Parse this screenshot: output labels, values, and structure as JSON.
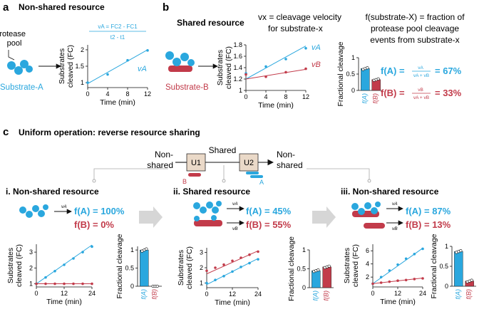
{
  "colors": {
    "a": "#2aa7de",
    "b": "#c23b4a",
    "flow_box": "#ead9c8",
    "arrow_gray": "#d6d6d6"
  },
  "panel_a": {
    "letter": "a",
    "title": "Non-shared resource",
    "protease_label": [
      "Protease",
      "pool"
    ],
    "substrate_label": "Substrate-A",
    "formula_num": "vA = FC2 - FC1",
    "formula_den": "t2 - t1",
    "curve_label": "vA"
  },
  "panel_b": {
    "letter": "b",
    "title": "Shared resource",
    "vx_def": [
      "vx = cleavage velocity",
      "for substrate-x"
    ],
    "substrate_label": "Substrate-B",
    "fraction_def": [
      "f(substrate-X) = fraction of",
      "protease pool cleavage",
      "events from substrate-x"
    ],
    "fa_text": "f(A) =",
    "fa_result": "= 67%",
    "fb_text": "f(B) =",
    "fb_result": "= 33%",
    "frac_num_a": "vA",
    "frac_num_b": "vB",
    "frac_den": "vA + vB",
    "curve_labels": [
      "vA",
      "vB"
    ]
  },
  "panel_c": {
    "letter": "c",
    "title": "Uniform operation: reverse resource sharing",
    "flow": {
      "left": [
        "Non-",
        "shared"
      ],
      "mid": "Shared",
      "right": [
        "Non-",
        "shared"
      ],
      "u1": "U1",
      "u2": "U2",
      "b": "B",
      "a": "A"
    },
    "sub": [
      {
        "title": "i. Non-shared resource",
        "fa": "f(A) = 100%",
        "fb": "f(B) = 0%",
        "va": "vA"
      },
      {
        "title": "ii. Shared resource",
        "fa": "f(A) = 45%",
        "fb": "f(B) = 55%",
        "va": "vA",
        "vb": "vB"
      },
      {
        "title": "iii. Non-shared resource",
        "fa": "f(A) = 87%",
        "fb": "f(B) = 13%",
        "va": "vA",
        "vb": "vB"
      }
    ]
  },
  "chart_data": [
    {
      "id": "a-line",
      "type": "scatter",
      "title": "",
      "xlabel": "Time (min)",
      "ylabel": "Substrates cleaved (FC)",
      "xlim": [
        0,
        12
      ],
      "ylim": [
        0.85,
        2.15
      ],
      "xticks": [
        0,
        4,
        8,
        12
      ],
      "yticks": [
        1,
        1.5,
        2
      ],
      "series": [
        {
          "name": "A",
          "color": "a",
          "x": [
            0,
            4,
            8,
            12
          ],
          "y": [
            1.0,
            1.25,
            1.68,
            1.98
          ],
          "fit": [
            [
              0,
              0.97
            ],
            [
              12,
              2.0
            ]
          ]
        }
      ]
    },
    {
      "id": "b-line",
      "type": "scatter",
      "title": "",
      "xlabel": "Time (min)",
      "ylabel": "Substrates cleaved (FC)",
      "xlim": [
        0,
        12
      ],
      "ylim": [
        1.0,
        1.8
      ],
      "xticks": [
        0,
        4,
        8,
        12
      ],
      "yticks": [
        1.0,
        1.2,
        1.4,
        1.6,
        1.8
      ],
      "series": [
        {
          "name": "A",
          "color": "a",
          "x": [
            0,
            4,
            8,
            12
          ],
          "y": [
            1.3,
            1.42,
            1.55,
            1.74
          ],
          "fit": [
            [
              0,
              1.2
            ],
            [
              12,
              1.78
            ]
          ]
        },
        {
          "name": "B",
          "color": "b",
          "x": [
            0,
            4,
            8,
            12
          ],
          "y": [
            1.28,
            1.24,
            1.32,
            1.38
          ],
          "fit": [
            [
              0,
              1.2
            ],
            [
              12,
              1.37
            ]
          ]
        }
      ]
    },
    {
      "id": "b-bar",
      "type": "bar",
      "ylabel": "Fractional cleavage",
      "ylim": [
        0,
        1
      ],
      "yticks": [
        0,
        0.5,
        1
      ],
      "categories": [
        "f(A)",
        "f(B)"
      ],
      "values": [
        0.67,
        0.33
      ],
      "colors": [
        "a",
        "b"
      ],
      "points": [
        [
          0.64,
          0.67,
          0.69
        ],
        [
          0.31,
          0.33,
          0.35
        ]
      ]
    },
    {
      "id": "c1-line",
      "type": "scatter",
      "xlabel": "Time (min)",
      "ylabel": "Substrates cleaved (FC)",
      "xlim": [
        0,
        24
      ],
      "ylim": [
        0.8,
        3.5
      ],
      "xticks": [
        0,
        12,
        24
      ],
      "yticks": [
        1,
        2,
        3
      ],
      "series": [
        {
          "name": "A",
          "color": "a",
          "x": [
            0,
            4,
            8,
            12,
            16,
            20,
            24
          ],
          "y": [
            1.0,
            1.4,
            1.8,
            2.2,
            2.6,
            3.0,
            3.35
          ],
          "fit": [
            [
              0,
              1.0
            ],
            [
              24,
              3.45
            ]
          ]
        },
        {
          "name": "B",
          "color": "b",
          "x": [
            0,
            4,
            8,
            12,
            16,
            20,
            24
          ],
          "y": [
            1.0,
            1.0,
            1.0,
            1.0,
            1.0,
            1.0,
            1.0
          ],
          "fit": [
            [
              0,
              1.0
            ],
            [
              24,
              1.0
            ]
          ]
        }
      ]
    },
    {
      "id": "c1-bar",
      "type": "bar",
      "ylabel": "Fractional cleavage",
      "ylim": [
        0,
        1.1
      ],
      "yticks": [
        0,
        0.5,
        1
      ],
      "categories": [
        "f(A)",
        "f(B)"
      ],
      "values": [
        1.0,
        0.0
      ],
      "colors": [
        "a",
        "b"
      ],
      "points": [
        [
          0.97,
          1.0,
          1.03
        ],
        [
          0.0,
          0.0,
          0.0
        ]
      ]
    },
    {
      "id": "c2-line",
      "type": "scatter",
      "xlabel": "Time (min)",
      "ylabel": "Substrates cleaved (FC)",
      "xlim": [
        0,
        24
      ],
      "ylim": [
        0.7,
        3.3
      ],
      "xticks": [
        0,
        12,
        24
      ],
      "yticks": [
        1,
        2,
        3
      ],
      "series": [
        {
          "name": "A",
          "color": "a",
          "x": [
            0,
            4,
            8,
            12,
            16,
            20,
            24
          ],
          "y": [
            1.0,
            1.2,
            1.45,
            1.75,
            2.05,
            2.3,
            2.55
          ],
          "fit": [
            [
              0,
              0.9
            ],
            [
              24,
              2.6
            ]
          ]
        },
        {
          "name": "B",
          "color": "b",
          "x": [
            0,
            4,
            8,
            12,
            16,
            20,
            24
          ],
          "y": [
            1.8,
            2.0,
            2.2,
            2.45,
            2.65,
            2.85,
            3.05
          ],
          "fit": [
            [
              0,
              1.6
            ],
            [
              24,
              3.1
            ]
          ]
        }
      ]
    },
    {
      "id": "c2-bar",
      "type": "bar",
      "ylabel": "Fractional cleavage",
      "ylim": [
        0,
        1
      ],
      "yticks": [
        0,
        0.5,
        1
      ],
      "categories": [
        "f(A)",
        "f(B)"
      ],
      "values": [
        0.45,
        0.55
      ],
      "colors": [
        "a",
        "b"
      ],
      "points": [
        [
          0.43,
          0.45,
          0.47
        ],
        [
          0.53,
          0.55,
          0.57
        ]
      ]
    },
    {
      "id": "c3-line",
      "type": "scatter",
      "xlabel": "Time (min)",
      "ylabel": "Substrates cleaved (FC)",
      "xlim": [
        0,
        24
      ],
      "ylim": [
        0.5,
        7
      ],
      "xticks": [
        0,
        12,
        24
      ],
      "yticks": [
        2,
        4,
        6
      ],
      "series": [
        {
          "name": "A",
          "color": "a",
          "x": [
            0,
            4,
            8,
            12,
            16,
            20,
            24
          ],
          "y": [
            1.0,
            2.0,
            3.0,
            3.9,
            4.8,
            5.5,
            6.3
          ],
          "fit": [
            [
              0,
              1.0
            ],
            [
              24,
              6.4
            ]
          ]
        },
        {
          "name": "B",
          "color": "b",
          "x": [
            0,
            4,
            8,
            12,
            16,
            20,
            24
          ],
          "y": [
            1.0,
            1.15,
            1.3,
            1.45,
            1.55,
            1.7,
            1.8
          ],
          "fit": [
            [
              0,
              1.0
            ],
            [
              24,
              1.85
            ]
          ]
        }
      ]
    },
    {
      "id": "c3-bar",
      "type": "bar",
      "ylabel": "Fractional cleavage",
      "ylim": [
        0,
        1
      ],
      "yticks": [
        0,
        0.5,
        1
      ],
      "categories": [
        "f(A)",
        "f(B)"
      ],
      "values": [
        0.87,
        0.13
      ],
      "colors": [
        "a",
        "b"
      ],
      "points": [
        [
          0.85,
          0.87,
          0.89
        ],
        [
          0.11,
          0.13,
          0.15
        ]
      ]
    }
  ]
}
